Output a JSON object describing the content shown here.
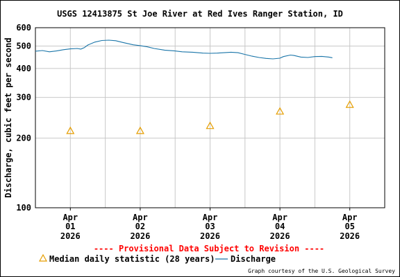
{
  "chart_data": {
    "type": "line",
    "title": "USGS 12413875 St Joe River at Red Ives Ranger Station, ID",
    "ylabel": "Discharge, cubic feet per second",
    "yscale": "log",
    "ylim": [
      100,
      600
    ],
    "y_ticks": [
      "100",
      "200",
      "300",
      "400",
      "500",
      "600"
    ],
    "x_ticks": [
      {
        "month": "Apr",
        "day": "01",
        "year": "2026"
      },
      {
        "month": "Apr",
        "day": "02",
        "year": "2026"
      },
      {
        "month": "Apr",
        "day": "03",
        "year": "2026"
      },
      {
        "month": "Apr",
        "day": "04",
        "year": "2026"
      },
      {
        "month": "Apr",
        "day": "05",
        "year": "2026"
      }
    ],
    "xlim_days": [
      -0.5,
      4.5
    ],
    "series": [
      {
        "name": "Discharge",
        "color": "#1874a8",
        "points": [
          [
            -0.5,
            475
          ],
          [
            -0.4,
            478
          ],
          [
            -0.3,
            472
          ],
          [
            -0.2,
            476
          ],
          [
            -0.1,
            482
          ],
          [
            0.0,
            486
          ],
          [
            0.1,
            488
          ],
          [
            0.15,
            485
          ],
          [
            0.2,
            492
          ],
          [
            0.25,
            505
          ],
          [
            0.35,
            520
          ],
          [
            0.45,
            528
          ],
          [
            0.55,
            530
          ],
          [
            0.65,
            527
          ],
          [
            0.75,
            518
          ],
          [
            0.9,
            506
          ],
          [
            1.0,
            502
          ],
          [
            1.1,
            496
          ],
          [
            1.2,
            488
          ],
          [
            1.35,
            480
          ],
          [
            1.5,
            476
          ],
          [
            1.6,
            472
          ],
          [
            1.75,
            470
          ],
          [
            1.9,
            466
          ],
          [
            2.0,
            465
          ],
          [
            2.1,
            466
          ],
          [
            2.2,
            468
          ],
          [
            2.3,
            470
          ],
          [
            2.4,
            468
          ],
          [
            2.5,
            460
          ],
          [
            2.6,
            452
          ],
          [
            2.7,
            446
          ],
          [
            2.8,
            442
          ],
          [
            2.9,
            440
          ],
          [
            3.0,
            443
          ],
          [
            3.05,
            450
          ],
          [
            3.15,
            457
          ],
          [
            3.2,
            455
          ],
          [
            3.3,
            448
          ],
          [
            3.4,
            446
          ],
          [
            3.5,
            450
          ],
          [
            3.6,
            451
          ],
          [
            3.7,
            448
          ],
          [
            3.75,
            445
          ]
        ]
      },
      {
        "name": "Median daily statistic (28 years)",
        "color": "#e69e00",
        "marker": "triangle",
        "points": [
          [
            0,
            215
          ],
          [
            1,
            215
          ],
          [
            2,
            226
          ],
          [
            3,
            261
          ],
          [
            4,
            279
          ]
        ]
      }
    ],
    "annotation": "---- Provisional Data Subject to Revision ----",
    "credit": "Graph courtesy of the U.S. Geological Survey"
  },
  "legend": {
    "median_label": "Median daily statistic (28 years)",
    "discharge_label": "Discharge"
  }
}
